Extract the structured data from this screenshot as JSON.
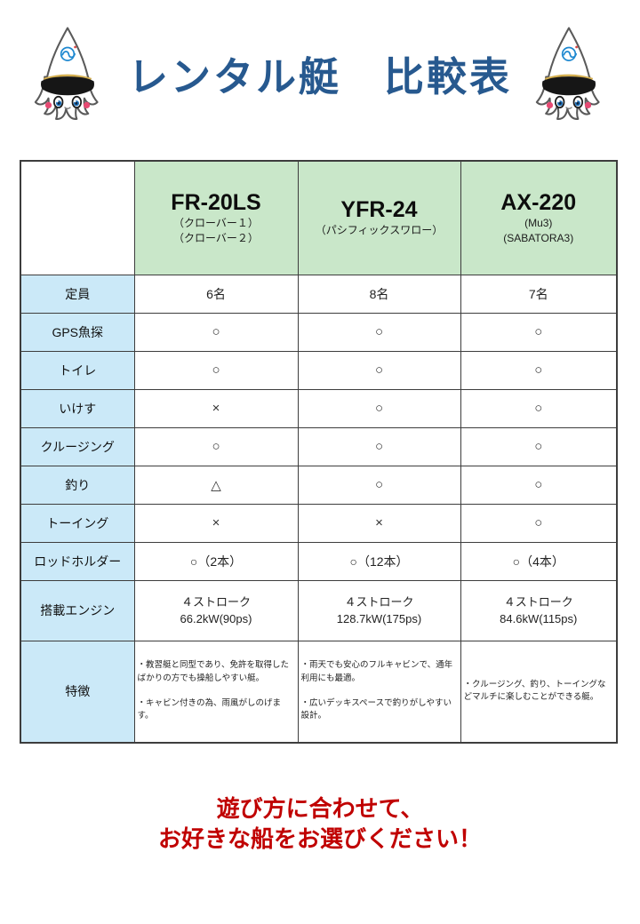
{
  "page": {
    "title": "レンタル艇　比較表",
    "footer": {
      "line1": "遊び方に合わせて、",
      "line2": "お好きな船をお選びください！"
    }
  },
  "colors": {
    "title_blue": "#27598f",
    "footer_red": "#c00000",
    "header_green": "#c9e7c9",
    "label_column_blue": "#cbe9f8",
    "table_border": "#3d3d3d"
  },
  "icons": {
    "mascot": "squid-captain-mascot"
  },
  "table": {
    "columns": [
      {
        "model": "FR-20LS",
        "sub": [
          "（クローバー１）",
          "（クローバー２）"
        ]
      },
      {
        "model": "YFR-24",
        "sub": [
          "（パシフィックスワロー）"
        ]
      },
      {
        "model": "AX-220",
        "sub": [
          "(Mu3)",
          "(SABATORA3)"
        ]
      }
    ],
    "rows": [
      {
        "label": "定員",
        "kind": "text",
        "values": [
          "6名",
          "8名",
          "7名"
        ]
      },
      {
        "label": "GPS魚探",
        "kind": "symbol",
        "values": [
          "○",
          "○",
          "○"
        ]
      },
      {
        "label": "トイレ",
        "kind": "symbol",
        "values": [
          "○",
          "○",
          "○"
        ]
      },
      {
        "label": "いけす",
        "kind": "symbol",
        "values": [
          "×",
          "○",
          "○"
        ]
      },
      {
        "label": "クルージング",
        "kind": "symbol",
        "values": [
          "○",
          "○",
          "○"
        ]
      },
      {
        "label": "釣り",
        "kind": "symbol",
        "values": [
          "△",
          "○",
          "○"
        ]
      },
      {
        "label": "トーイング",
        "kind": "symbol",
        "values": [
          "×",
          "×",
          "○"
        ]
      },
      {
        "label": "ロッドホルダー",
        "kind": "text",
        "values": [
          "○（2本）",
          "○（12本）",
          "○（4本）"
        ]
      },
      {
        "label": "搭載エンジン",
        "kind": "engine",
        "values": [
          [
            "４ストローク",
            "66.2kW(90ps)"
          ],
          [
            "４ストローク",
            "128.7kW(175ps)"
          ],
          [
            "４ストローク",
            "84.6kW(115ps)"
          ]
        ]
      },
      {
        "label": "特徴",
        "kind": "feature",
        "values": [
          [
            "・教習艇と同型であり、免許を取得したばかりの方でも操船しやすい艇。",
            "・キャビン付きの為、雨風がしのげます。"
          ],
          [
            "・雨天でも安心のフルキャビンで、通年利用にも最適。",
            "・広いデッキスペースで釣りがしやすい設計。"
          ],
          [
            "・クルージング、釣り、トーイングなどマルチに楽しむことができる艇。"
          ]
        ]
      }
    ]
  }
}
